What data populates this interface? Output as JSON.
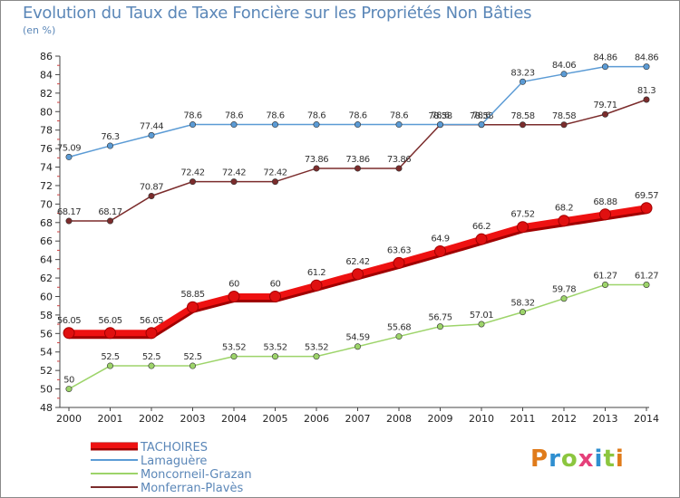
{
  "title": "Evolution du Taux de Taxe Foncière sur les Propriétés Non Bâties",
  "unit_label": "(en %)",
  "logo_text": "Proxiti",
  "logo_colors": [
    "#e07b1a",
    "#2f8fd0",
    "#8cc63f",
    "#e5407a",
    "#2f8fd0",
    "#8cc63f",
    "#e07b1a"
  ],
  "chart_data": {
    "type": "line",
    "title": "Evolution du Taux de Taxe Foncière sur les Propriétés Non Bâties",
    "ylabel": "(en %)",
    "xlabel": "",
    "ylim": [
      48,
      86
    ],
    "yticks": [
      48,
      50,
      52,
      54,
      56,
      58,
      60,
      62,
      64,
      66,
      68,
      70,
      72,
      74,
      76,
      78,
      80,
      82,
      84,
      86
    ],
    "x": [
      "2000",
      "2001",
      "2002",
      "2003",
      "2004",
      "2005",
      "2006",
      "2007",
      "2008",
      "2009",
      "2010",
      "2011",
      "2012",
      "2013",
      "2014"
    ],
    "grid": false,
    "legend_position": "bottom-left",
    "series": [
      {
        "name": "TACHOIRES",
        "color": "#ee1111",
        "emphasis": true,
        "values": [
          56.05,
          56.05,
          56.05,
          58.85,
          60,
          60,
          61.2,
          62.42,
          63.63,
          64.9,
          66.2,
          67.52,
          68.2,
          68.88,
          69.57
        ],
        "labels": [
          "56.05",
          "56.05",
          "56.05",
          "58.85",
          "60",
          "60",
          "61.2",
          "62.42",
          "63.63",
          "64.9",
          "66.2",
          "67.52",
          "68.2",
          "68.88",
          "69.57"
        ]
      },
      {
        "name": "Lamaguère",
        "color": "#5b9bd5",
        "emphasis": false,
        "values": [
          75.09,
          76.3,
          77.44,
          78.6,
          78.6,
          78.6,
          78.6,
          78.6,
          78.6,
          78.6,
          78.6,
          83.23,
          84.06,
          84.86,
          84.86
        ],
        "labels": [
          "75.09",
          "76.3",
          "77.44",
          "78.6",
          "78.6",
          "78.6",
          "78.6",
          "78.6",
          "78.6",
          "78.6",
          "78.6",
          "83.23",
          "84.06",
          "84.86",
          "84.86"
        ]
      },
      {
        "name": "Moncorneil-Grazan",
        "color": "#9dd46a",
        "emphasis": false,
        "values": [
          50,
          52.5,
          52.5,
          52.5,
          53.52,
          53.52,
          53.52,
          54.59,
          55.68,
          56.75,
          57.01,
          58.32,
          59.78,
          61.27,
          61.27
        ],
        "labels": [
          "50",
          "52.5",
          "52.5",
          "52.5",
          "53.52",
          "53.52",
          "53.52",
          "54.59",
          "55.68",
          "56.75",
          "57.01",
          "58.32",
          "59.78",
          "61.27",
          "61.27"
        ]
      },
      {
        "name": "Monferran-Plavès",
        "color": "#7b2c2c",
        "emphasis": false,
        "values": [
          68.17,
          68.17,
          70.87,
          72.42,
          72.42,
          72.42,
          73.86,
          73.86,
          73.86,
          78.58,
          78.58,
          78.58,
          78.58,
          79.71,
          81.3
        ],
        "labels": [
          "68.17",
          "68.17",
          "70.87",
          "72.42",
          "72.42",
          "72.42",
          "73.86",
          "73.86",
          "73.86",
          "78.58",
          "78.58",
          "78.58",
          "78.58",
          "79.71",
          "81.3"
        ]
      }
    ]
  }
}
